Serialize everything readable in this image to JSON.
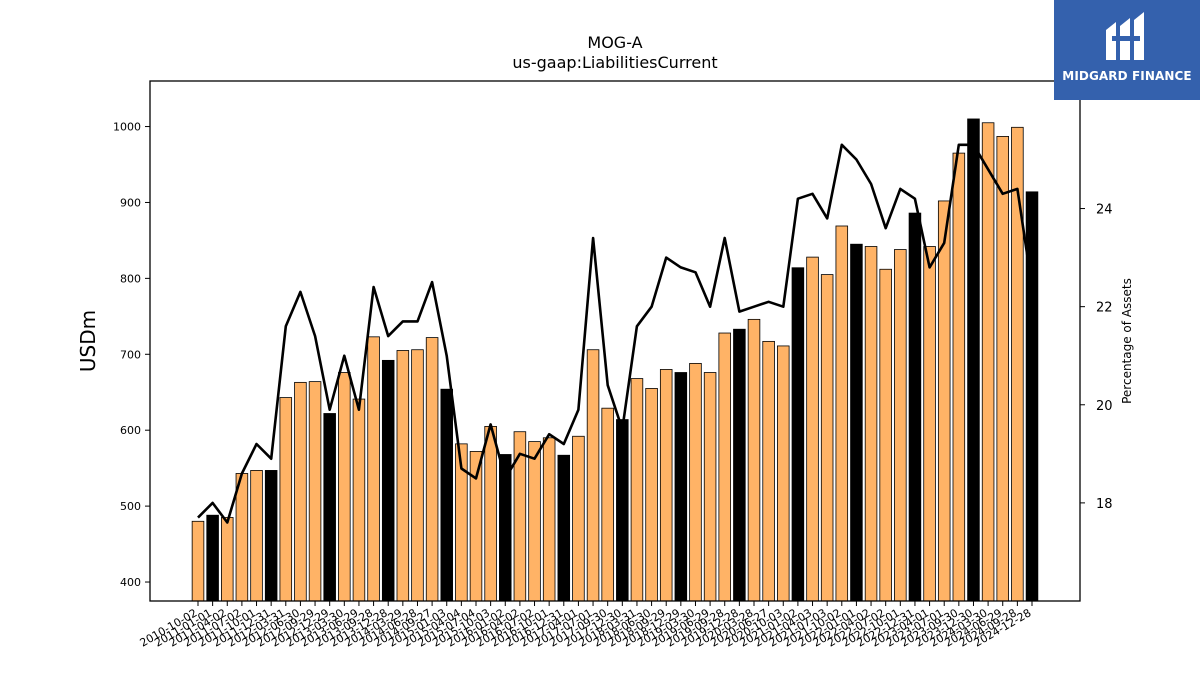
{
  "brand": {
    "name": "MIDGARD FINANCE",
    "bg_color": "#3461ad"
  },
  "chart_data": {
    "type": "bar",
    "title": "MOG-A",
    "subtitle": "us-gaap:LiabilitiesCurrent",
    "ylabel": "USDm",
    "y2label": "Percentage of Assets",
    "ylim": [
      375,
      1060
    ],
    "y2lim": [
      16.0,
      26.6
    ],
    "yticks": [
      400,
      500,
      600,
      700,
      800,
      900,
      1000
    ],
    "y2ticks": [
      18,
      20,
      22,
      24
    ],
    "bar_color": "#ffb366",
    "highlight_color": "#000000",
    "line_color": "#000000",
    "categories": [
      "2010-10-02",
      "2011-01-01",
      "2011-04-02",
      "2011-07-02",
      "2011-10-01",
      "2011-12-31",
      "2012-03-31",
      "2012-06-30",
      "2012-09-29",
      "2012-12-29",
      "2013-03-30",
      "2013-06-29",
      "2013-09-28",
      "2013-12-28",
      "2014-03-29",
      "2014-06-28",
      "2014-09-27",
      "2015-01-03",
      "2015-04-04",
      "2015-07-04",
      "2015-10-03",
      "2016-01-02",
      "2016-04-02",
      "2016-07-02",
      "2016-10-01",
      "2016-12-31",
      "2017-04-01",
      "2017-07-01",
      "2017-09-30",
      "2017-12-30",
      "2018-03-31",
      "2018-06-30",
      "2018-09-29",
      "2018-12-29",
      "2019-03-30",
      "2019-06-29",
      "2019-09-28",
      "2019-12-28",
      "2020-03-28",
      "2020-06-27",
      "2020-10-03",
      "2021-01-02",
      "2021-04-03",
      "2021-07-03",
      "2021-10-02",
      "2022-01-01",
      "2022-04-02",
      "2022-07-02",
      "2022-10-01",
      "2022-12-31",
      "2023-04-01",
      "2023-07-01",
      "2023-09-30",
      "2023-12-30",
      "2024-03-30",
      "2024-06-29",
      "2024-09-28",
      "2024-12-28"
    ],
    "series": [
      {
        "name": "",
        "type": "bar",
        "values": [
          480,
          488,
          485,
          543,
          547,
          547,
          643,
          663,
          664,
          622,
          676,
          641,
          723,
          692,
          705,
          706,
          722,
          654,
          582,
          572,
          605,
          568,
          598,
          585,
          590,
          567,
          592,
          706,
          629,
          614,
          668,
          655,
          680,
          676,
          688,
          676,
          728,
          733,
          746,
          717,
          711,
          814,
          828,
          805,
          869,
          845,
          842,
          812,
          838,
          886,
          842,
          902,
          965,
          1010,
          1005,
          987,
          999,
          914
        ],
        "highlight": [
          false,
          true,
          false,
          false,
          false,
          true,
          false,
          false,
          false,
          true,
          false,
          false,
          false,
          true,
          false,
          false,
          false,
          true,
          false,
          false,
          false,
          true,
          false,
          false,
          false,
          true,
          false,
          false,
          false,
          true,
          false,
          false,
          false,
          true,
          false,
          false,
          false,
          true,
          false,
          false,
          false,
          true,
          false,
          false,
          false,
          true,
          false,
          false,
          false,
          true,
          false,
          false,
          false,
          true,
          false,
          false,
          false,
          true
        ]
      },
      {
        "name": "",
        "type": "line",
        "axis": "right",
        "values": [
          17.7,
          18.0,
          17.6,
          18.6,
          19.2,
          18.9,
          21.6,
          22.3,
          21.4,
          19.9,
          21.0,
          19.9,
          22.4,
          21.4,
          21.7,
          21.7,
          22.5,
          21.0,
          18.7,
          18.5,
          19.6,
          18.5,
          19.0,
          18.9,
          19.4,
          19.2,
          19.9,
          23.4,
          20.4,
          19.5,
          21.6,
          22.0,
          23.0,
          22.8,
          22.7,
          22.0,
          23.4,
          21.9,
          22.0,
          22.1,
          22.0,
          24.2,
          24.3,
          23.8,
          25.3,
          25.0,
          24.5,
          23.6,
          24.4,
          24.2,
          22.8,
          23.3,
          25.3,
          25.3,
          24.8,
          24.3,
          24.4,
          22.4
        ]
      }
    ]
  }
}
